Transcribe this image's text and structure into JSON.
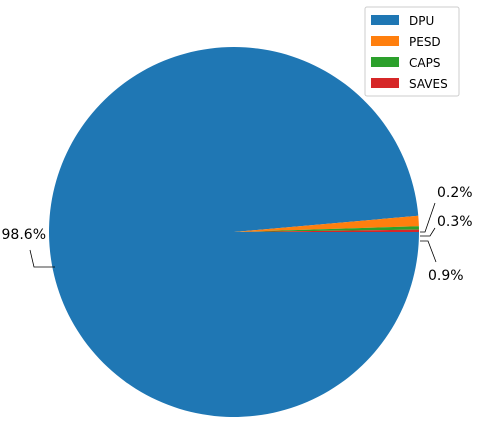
{
  "chart_data": {
    "type": "pie",
    "title": "",
    "categories": [
      "DPU",
      "PESD",
      "CAPS",
      "SAVES"
    ],
    "values": [
      98.6,
      0.9,
      0.3,
      0.2
    ],
    "labels": [
      "98.6%",
      "0.9%",
      "0.3%",
      "0.2%"
    ],
    "colors": [
      "#1f77b4",
      "#ff7f0e",
      "#2ca02c",
      "#d62728"
    ],
    "legend": [
      "DPU",
      "PESD",
      "CAPS",
      "SAVES"
    ],
    "legend_position": "top-right"
  }
}
